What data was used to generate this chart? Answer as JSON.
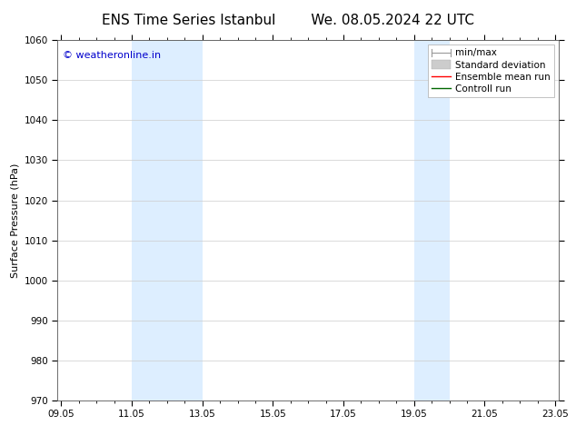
{
  "title_left": "ENS Time Series Istanbul",
  "title_right": "We. 08.05.2024 22 UTC",
  "ylabel": "Surface Pressure (hPa)",
  "ylim": [
    970,
    1060
  ],
  "yticks": [
    970,
    980,
    990,
    1000,
    1010,
    1020,
    1030,
    1040,
    1050,
    1060
  ],
  "xtick_labels": [
    "09.05",
    "11.05",
    "13.05",
    "15.05",
    "17.05",
    "19.05",
    "21.05",
    "23.05"
  ],
  "xtick_positions": [
    0,
    2,
    4,
    6,
    8,
    10,
    12,
    14
  ],
  "xlim": [
    -0.1,
    14.1
  ],
  "shaded_bands": [
    {
      "x_start": 2,
      "x_end": 4
    },
    {
      "x_start": 10,
      "x_end": 11
    }
  ],
  "shade_color": "#ddeeff",
  "watermark": "© weatheronline.in",
  "watermark_color": "#0000cc",
  "legend_entries": [
    {
      "label": "min/max",
      "color": "#aaaaaa",
      "lw": 1.2
    },
    {
      "label": "Standard deviation",
      "color": "#cccccc",
      "lw": 5
    },
    {
      "label": "Ensemble mean run",
      "color": "#ff0000",
      "lw": 1.2
    },
    {
      "label": "Controll run",
      "color": "#006600",
      "lw": 1.2
    }
  ],
  "bg_color": "#ffffff",
  "grid_color": "#cccccc",
  "title_fontsize": 11,
  "axis_label_fontsize": 8,
  "tick_fontsize": 7.5,
  "legend_fontsize": 7.5,
  "watermark_fontsize": 8
}
